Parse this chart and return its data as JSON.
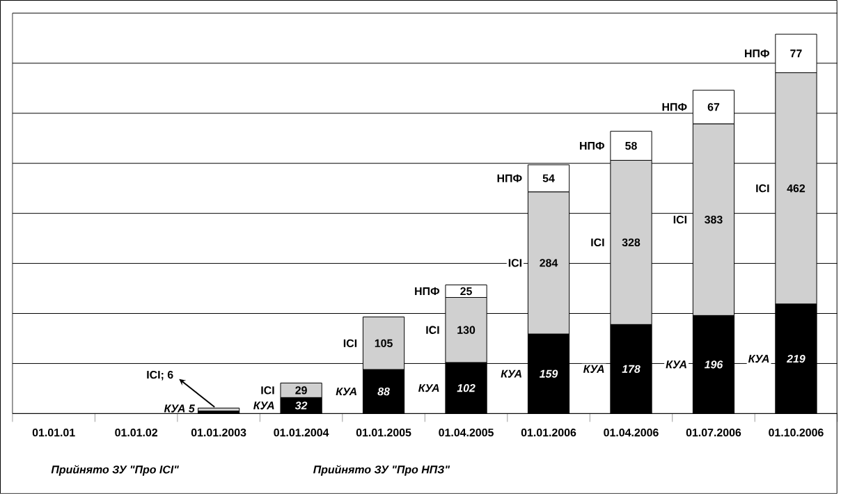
{
  "chart_data": {
    "type": "bar",
    "stacked": true,
    "categories": [
      "01.01.01",
      "01.01.02",
      "01.01.2003",
      "01.01.2004",
      "01.01.2005",
      "01.04.2005",
      "01.01.2006",
      "01.04.2006",
      "01.07.2006",
      "01.10.2006"
    ],
    "series": [
      {
        "name": "КУА",
        "color": "#000000",
        "values": [
          null,
          null,
          5,
          32,
          88,
          102,
          159,
          178,
          196,
          219
        ],
        "value_labels": [
          null,
          null,
          "5",
          "32",
          "88",
          "102",
          "159",
          "178",
          "196",
          "219"
        ]
      },
      {
        "name": "ICI",
        "color": "#d0d0d0",
        "values": [
          null,
          null,
          6,
          29,
          105,
          130,
          284,
          328,
          383,
          462
        ],
        "value_labels": [
          null,
          null,
          null,
          "29",
          "105",
          "130",
          "284",
          "328",
          "383",
          "462"
        ]
      },
      {
        "name": "НПФ",
        "color": "#ffffff",
        "values": [
          null,
          null,
          null,
          null,
          null,
          25,
          54,
          58,
          67,
          77
        ],
        "value_labels": [
          null,
          null,
          null,
          null,
          null,
          "25",
          "54",
          "58",
          "67",
          "77"
        ]
      }
    ],
    "ylim": [
      0,
      800
    ],
    "yticks": [
      {
        "value": 0,
        "label": null
      },
      {
        "value": 100,
        "label": null
      },
      {
        "value": 200,
        "label": null
      },
      {
        "value": 300,
        "label": null
      },
      {
        "value": 400,
        "label": null
      },
      {
        "value": 500,
        "label": null
      },
      {
        "value": 600,
        "label": null
      },
      {
        "value": 700,
        "label": null
      },
      {
        "value": 800,
        "label": null
      }
    ],
    "tick_labels": "x",
    "grid": "y",
    "annotations": [
      {
        "text": "ICI; 6",
        "x": "01.01.2003",
        "y": 11
      },
      "Прийнято ЗУ \"Про ICI\"",
      "Прийнято ЗУ \"Про НПЗ\""
    ]
  }
}
